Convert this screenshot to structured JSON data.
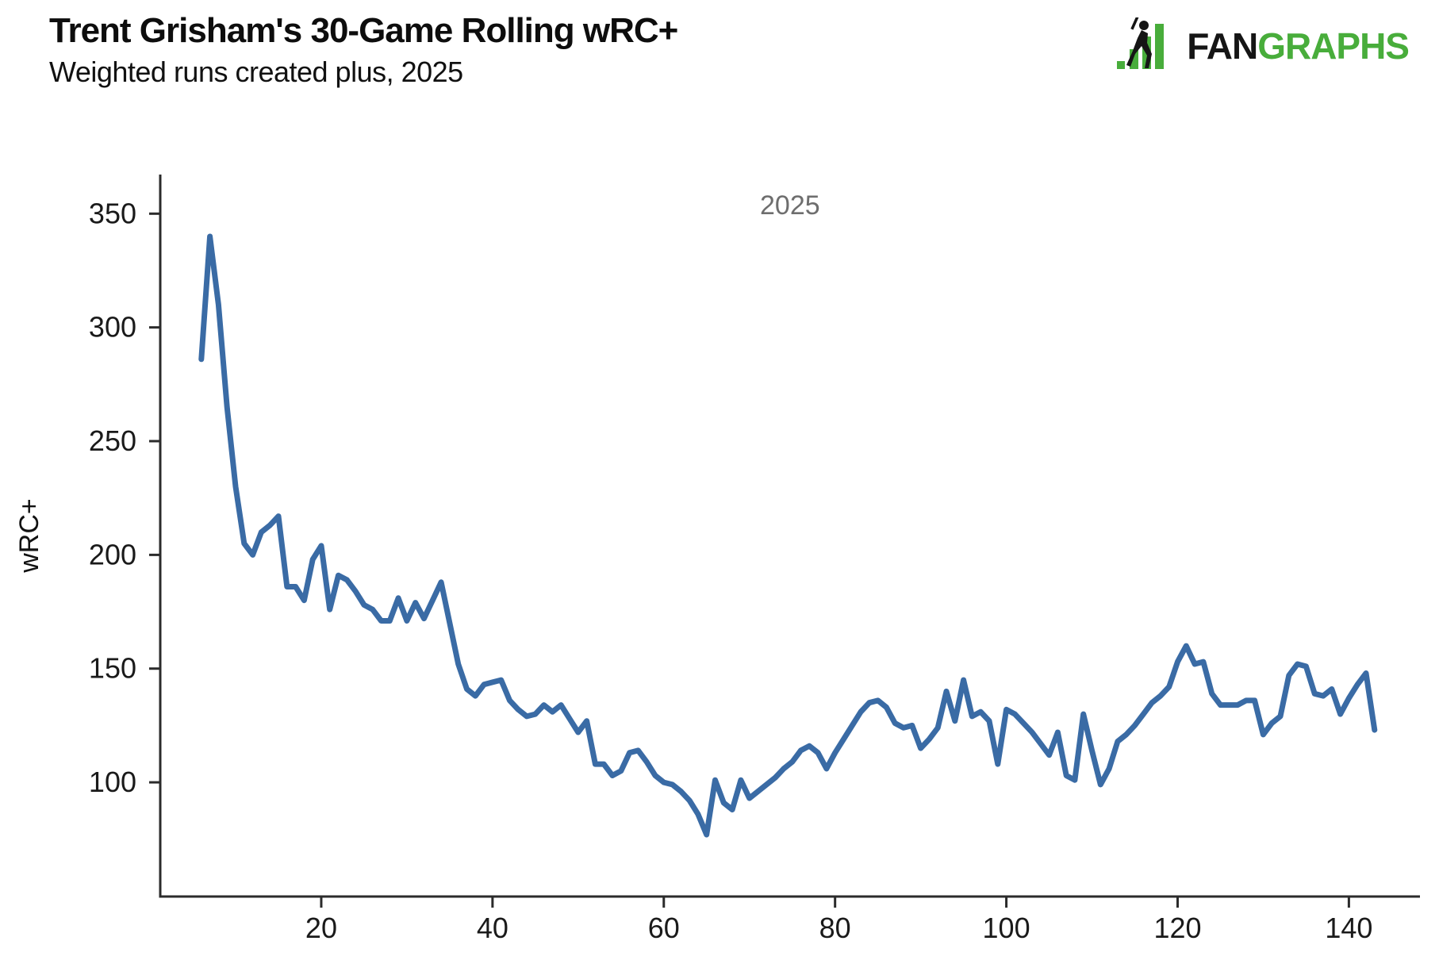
{
  "header": {
    "title": "Trent Grisham's 30-Game Rolling wRC+",
    "subtitle": "Weighted runs created plus, 2025"
  },
  "logo": {
    "fan": "FAN",
    "graphs": "GRAPHS",
    "green": "#48AD3B",
    "black": "#151515"
  },
  "chart_data": {
    "type": "line",
    "title": "Trent Grisham's 30-Game Rolling wRC+",
    "subtitle": "Weighted runs created plus, 2025",
    "xlabel": "",
    "ylabel": "wRC+",
    "legend": {
      "label": "2025",
      "color": "#6E6E6E",
      "position": "top-center"
    },
    "grid": false,
    "axis_color": "#2B2B2B",
    "tick_label_color": "#1a1a1a",
    "x_ticks": [
      20,
      40,
      60,
      80,
      100,
      120,
      140
    ],
    "y_ticks": [
      100,
      150,
      200,
      250,
      300,
      350
    ],
    "xlim": [
      1.2,
      148.3
    ],
    "ylim": [
      49.8,
      367.2
    ],
    "series": [
      {
        "name": "2025",
        "color": "#3A6BA5",
        "stroke_width": 7,
        "x": [
          6,
          7,
          8,
          9,
          10,
          11,
          12,
          13,
          14,
          15,
          16,
          17,
          18,
          19,
          20,
          21,
          22,
          23,
          24,
          25,
          26,
          27,
          28,
          29,
          30,
          31,
          32,
          33,
          34,
          35,
          36,
          37,
          38,
          39,
          40,
          41,
          42,
          43,
          44,
          45,
          46,
          47,
          48,
          49,
          50,
          51,
          52,
          53,
          54,
          55,
          56,
          57,
          58,
          59,
          60,
          61,
          62,
          63,
          64,
          65,
          66,
          67,
          68,
          69,
          70,
          71,
          72,
          73,
          74,
          75,
          76,
          77,
          78,
          79,
          80,
          81,
          82,
          83,
          84,
          85,
          86,
          87,
          88,
          89,
          90,
          91,
          92,
          93,
          94,
          95,
          96,
          97,
          98,
          99,
          100,
          101,
          102,
          103,
          104,
          105,
          106,
          107,
          108,
          109,
          110,
          111,
          112,
          113,
          114,
          115,
          116,
          117,
          118,
          119,
          120,
          121,
          122,
          123,
          124,
          125,
          126,
          127,
          128,
          129,
          130,
          131,
          132,
          133,
          134,
          135,
          136,
          137,
          138,
          139,
          140,
          141,
          142,
          143
        ],
        "values": [
          286,
          340,
          310,
          265,
          230,
          205,
          200,
          210,
          213,
          217,
          186,
          186,
          180,
          198,
          204,
          176,
          191,
          189,
          184,
          178,
          176,
          171,
          171,
          181,
          171,
          179,
          172,
          180,
          188,
          170,
          152,
          141,
          138,
          143,
          144,
          145,
          136,
          132,
          129,
          130,
          134,
          131,
          134,
          128,
          122,
          127,
          108,
          108,
          103,
          105,
          113,
          114,
          109,
          103,
          100,
          99,
          96,
          92,
          86,
          77,
          101,
          91,
          88,
          101,
          93,
          96,
          99,
          102,
          106,
          109,
          114,
          116,
          113,
          106,
          113,
          119,
          125,
          131,
          135,
          136,
          133,
          126,
          124,
          125,
          115,
          119,
          124,
          140,
          127,
          145,
          129,
          131,
          127,
          108,
          132,
          130,
          126,
          122,
          117,
          112,
          122,
          103,
          101,
          130,
          114,
          99,
          106,
          118,
          121,
          125,
          130,
          135,
          138,
          142,
          153,
          160,
          152,
          153,
          139,
          134,
          134,
          134,
          136,
          136,
          121,
          126,
          129,
          147,
          152,
          151,
          139,
          138,
          141,
          130,
          137,
          143,
          148,
          123
        ]
      }
    ]
  }
}
